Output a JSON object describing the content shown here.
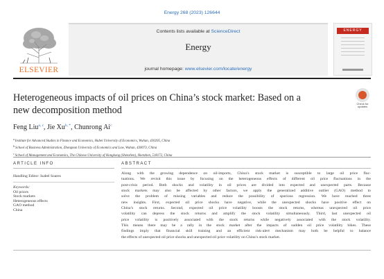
{
  "citation": "Energy 268 (2023) 126644",
  "header": {
    "publisher_logo_text": "ELSEVIER",
    "contents_prefix": "Contents lists available at ",
    "contents_link": "ScienceDirect",
    "journal_name": "Energy",
    "homepage_prefix": "journal homepage: ",
    "homepage_link": "www.elsevier.com/locate/energy",
    "cover_title": "ENERGY"
  },
  "check_updates_label": "Check for updates",
  "article": {
    "title_line1": "Heterogeneous impacts of oil prices on China’s stock market: Based on a",
    "title_line2": "new decomposition method",
    "authors": [
      {
        "name": "Feng Liu",
        "sup": "a, c"
      },
      {
        "name": "Jie Xu",
        "sup": "b, *"
      },
      {
        "name": "Chunrong Ai",
        "sup": "c"
      }
    ],
    "affiliations": [
      {
        "key": "a",
        "text": "Institute for Advanced Studies in Finance and Economics, Hubei University of Economics, Wuhan, 430205, China"
      },
      {
        "key": "b",
        "text": "School of Business Administration, Zhongnan University of Economics and Law, Wuhan, 430073, China"
      },
      {
        "key": "c",
        "text": "School of Management and Economics, The Chinese University of Hongkong (Shenzhen), Shenzhen, 518172, China"
      }
    ]
  },
  "article_info": {
    "heading": "ARTICLE INFO",
    "handling_editor": "Handling Editor: Isabel Soares",
    "keywords_heading": "Keywords:",
    "keywords": [
      "Oil prices",
      "Stock markets",
      "Heterogeneous effects",
      "GAO method",
      "China"
    ]
  },
  "abstract": {
    "heading": "ABSTRACT",
    "lines": [
      "Along with the growing dependence on oil-imports, China’s stock market is susceptible to large oil price fluc-",
      "tuations. We revisit this issue by focusing on the heterogeneous effects of different oil price fluctuations in the",
      "post-crisis period. Both shocks and volatility in oil prices are divided into expected and unexpected parts. Because",
      "stock markets may also be affected by other factors, we apply the generalized additive outlier (GAO) method to",
      "solve the problem of missing variables and reduce the possibility of spurious regression. We have reached three",
      "new insights. First, expected oil price shocks have negative, while the unexpected shocks have positive effect on",
      "China’s stock returns. Second, expected oil price volatility boosts the stock returns, whereas unexpected oil price",
      "volatility can depress the stock returns and amplify the stock volatility simultaneously. Third, last unexpected oil",
      "price volatility is positively associated with the stock returns while negatively associated with the stock volatility.",
      "This means there may be a rally in the stock market after the impacts of sudden oil price volatility hikes. These",
      "findings imply that financial skill training and an efficient risk-alert mechanism may both be helpful to balance",
      "the effects of unexpected oil price shocks and unexpected oil price volatility on China’s stock market."
    ]
  },
  "colors": {
    "link": "#2a6ebb",
    "elsevier_orange": "#e8742a",
    "journal_box": "#f1f1f1"
  }
}
